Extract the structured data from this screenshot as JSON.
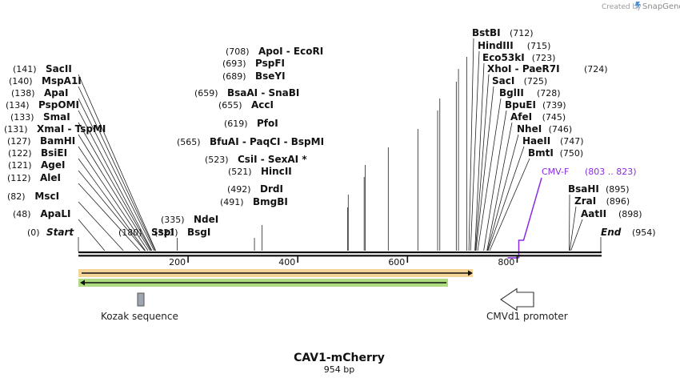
{
  "credit": {
    "text": "Created by",
    "brand": "SnapGene"
  },
  "plasmid": {
    "name": "CAV1-mCherry",
    "size_label": "954 bp",
    "length": 954
  },
  "ruler": {
    "ticks": [
      200,
      400,
      600,
      800
    ]
  },
  "ends": {
    "start": {
      "pos_label": "(0)",
      "name": "Start",
      "pos": 0
    },
    "end": {
      "pos_label": "(954)",
      "name": "End",
      "pos": 954
    }
  },
  "sites": [
    {
      "name": "ApaLI",
      "pos": 48
    },
    {
      "name": "MscI",
      "pos": 82
    },
    {
      "name": "AleI",
      "pos": 112
    },
    {
      "name": "AgeI",
      "pos": 121
    },
    {
      "name": "BsiEI",
      "pos": 122
    },
    {
      "name": "BamHI",
      "pos": 127
    },
    {
      "name": "XmaI",
      "alt": "TspMI",
      "pos": 131
    },
    {
      "name": "SmaI",
      "pos": 133
    },
    {
      "name": "PspOMI",
      "pos": 134
    },
    {
      "name": "ApaI",
      "pos": 138
    },
    {
      "name": "MspA1I",
      "pos": 140
    },
    {
      "name": "SacII",
      "pos": 141
    },
    {
      "name": "SspI",
      "pos": 180
    },
    {
      "name": "BsgI",
      "pos": 321
    },
    {
      "name": "NdeI",
      "pos": 335
    },
    {
      "name": "BmgBI",
      "pos": 491
    },
    {
      "name": "DrdI",
      "pos": 492
    },
    {
      "name": "HincII",
      "pos": 521
    },
    {
      "name": "CsiI",
      "alt": "SexAI *",
      "pos": 523
    },
    {
      "name": "BfuAI",
      "alt": "PaqCI",
      "alt2": "BspMI",
      "pos": 565
    },
    {
      "name": "PfoI",
      "pos": 619
    },
    {
      "name": "AccI",
      "pos": 655
    },
    {
      "name": "BsaAI",
      "alt": "SnaBI",
      "pos": 659
    },
    {
      "name": "BseYI",
      "pos": 689
    },
    {
      "name": "PspFI",
      "pos": 693
    },
    {
      "name": "ApoI",
      "alt": "EcoRI",
      "pos": 708
    },
    {
      "name": "BstBI",
      "pos": 712
    },
    {
      "name": "HindIII",
      "pos": 715
    },
    {
      "name": "Eco53kI",
      "pos": 723
    },
    {
      "name": "XhoI",
      "alt": "PaeR7I",
      "pos": 724
    },
    {
      "name": "SacI",
      "pos": 725
    },
    {
      "name": "BglII",
      "pos": 728
    },
    {
      "name": "BpuEI",
      "pos": 739
    },
    {
      "name": "AfeI",
      "pos": 745
    },
    {
      "name": "NheI",
      "pos": 746
    },
    {
      "name": "HaeII",
      "pos": 747
    },
    {
      "name": "BmtI",
      "pos": 750
    },
    {
      "name": "BsaHI",
      "pos": 895
    },
    {
      "name": "ZraI",
      "pos": 896
    },
    {
      "name": "AatII",
      "pos": 898
    }
  ],
  "primer": {
    "name": "CMV-F",
    "range": "(803 .. 823)",
    "start": 803,
    "end": 823,
    "color": "#8a2be2"
  },
  "features": [
    {
      "name": "Kozak sequence",
      "pos": 109
    },
    {
      "name": "CMVd1 promoter",
      "start": 770,
      "end": 830
    }
  ],
  "colors": {
    "orange": "#e8a33a",
    "green": "#7cc33f",
    "kozak": "#9ea6b2"
  }
}
